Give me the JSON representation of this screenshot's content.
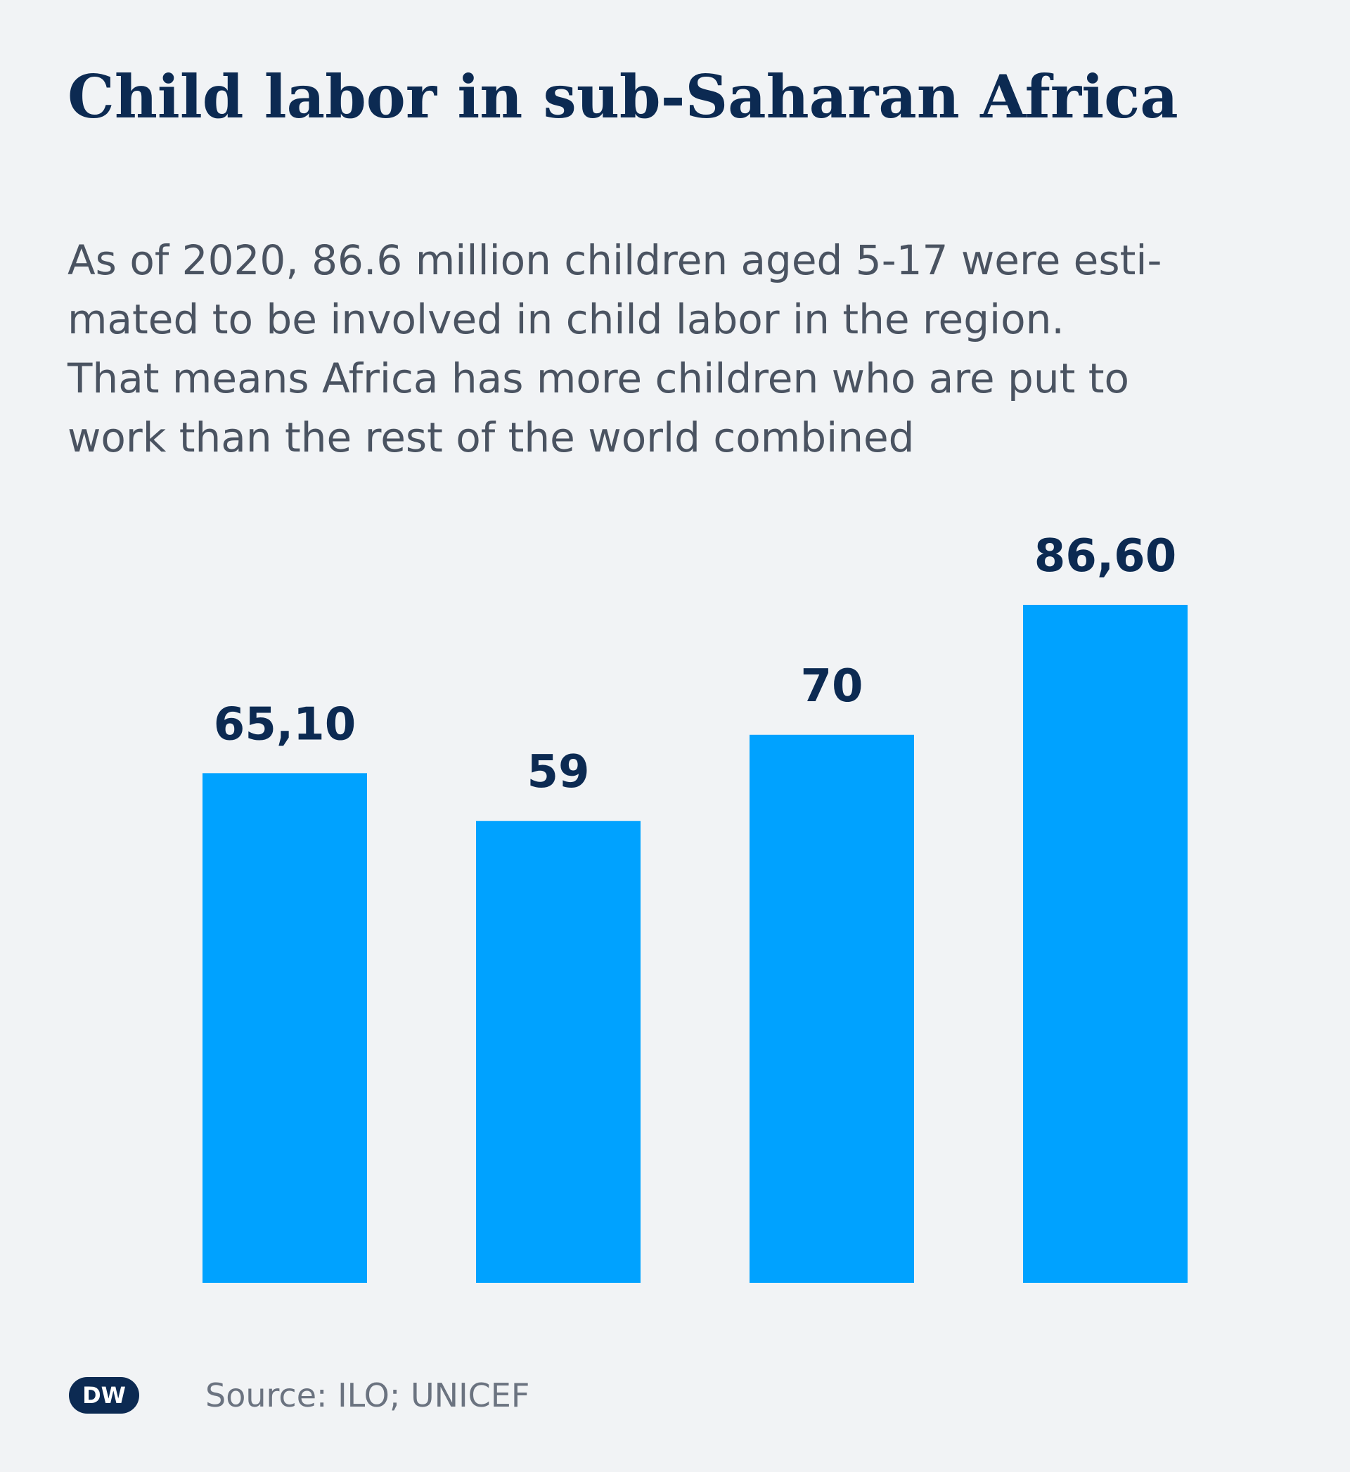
{
  "title": "Child labor in sub-Saharan Africa",
  "subtitle_lines": [
    "As of 2020, 86.6 million children aged 5-17 were esti-",
    "mated to be involved in child labor in the region.",
    "That means Africa has more children who are put to",
    "work than the rest of the world combined"
  ],
  "source": "Source: ILO; UNICEF",
  "logo_text": "DW",
  "colors": {
    "background": "#f1f3f5",
    "bar": "#00a2ff",
    "title": "#0c2a52",
    "body_text": "#4a5361",
    "source_text": "#6b7380"
  },
  "chart_data": {
    "type": "bar",
    "title": "Child labor in sub-Saharan Africa",
    "categories": [
      "",
      "",
      "",
      ""
    ],
    "values": [
      65.1,
      59,
      70,
      86.6
    ],
    "value_labels": [
      "65,10",
      "59",
      "70",
      "86,60"
    ],
    "ylim": [
      0,
      86.6
    ],
    "grid": false,
    "legend": "none"
  }
}
